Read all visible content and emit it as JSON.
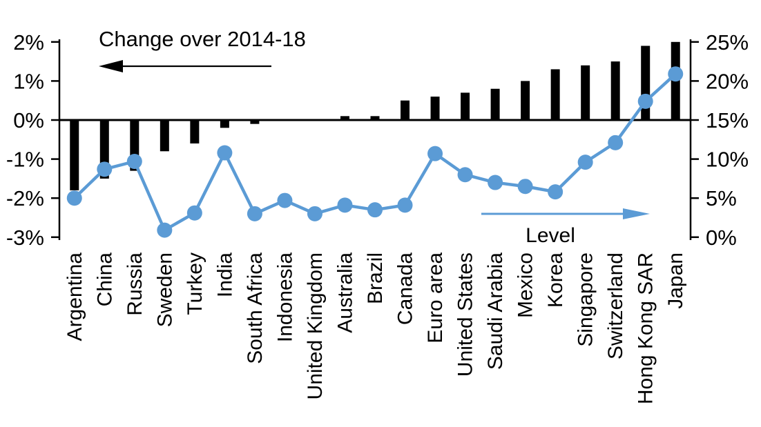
{
  "chart_data": {
    "type": "bar",
    "subtype": "bar-line-combo",
    "categories": [
      "Argentina",
      "China",
      "Russia",
      "Sweden",
      "Turkey",
      "India",
      "South Africa",
      "Indonesia",
      "United Kingdom",
      "Australia",
      "Brazil",
      "Canada",
      "Euro area",
      "United States",
      "Saudi Arabia",
      "Mexico",
      "Korea",
      "Singapore",
      "Switzerland",
      "Hong Kong SAR",
      "Japan"
    ],
    "series": [
      {
        "name": "Change over 2014-18",
        "type": "bar",
        "axis": "left",
        "color": "#000000",
        "values": [
          -1.8,
          -1.5,
          -1.3,
          -0.8,
          -0.6,
          -0.2,
          -0.1,
          0,
          0,
          0.1,
          0.1,
          0.5,
          0.6,
          0.7,
          0.8,
          1.0,
          1.3,
          1.4,
          1.5,
          1.9,
          2.0
        ]
      },
      {
        "name": "Level",
        "type": "line",
        "axis": "right",
        "color": "#5b9bd5",
        "values": [
          5.0,
          8.7,
          9.7,
          0.9,
          3.1,
          10.8,
          3.0,
          4.7,
          3.0,
          4.1,
          3.5,
          4.1,
          10.7,
          8.0,
          7.0,
          6.5,
          5.8,
          9.6,
          12.1,
          17.4,
          20.9
        ]
      }
    ],
    "left_axis": {
      "min": -3,
      "max": 2,
      "tick_values": [
        2,
        1,
        0,
        -1,
        -2,
        -3
      ],
      "tick_labels": [
        "2%",
        "1%",
        "0%",
        "-1%",
        "-2%",
        "-3%"
      ]
    },
    "right_axis": {
      "min": 0,
      "max": 25,
      "tick_values": [
        25,
        20,
        15,
        10,
        5,
        0
      ],
      "tick_labels": [
        "25%",
        "20%",
        "15%",
        "10%",
        "5%",
        "0%"
      ]
    },
    "annotations": {
      "bar_label": "Change over 2014-18",
      "bar_arrow_direction": "left",
      "line_label": "Level",
      "line_arrow_direction": "right"
    },
    "grid": false,
    "legend_position": "in-plot-annotations"
  },
  "colors": {
    "bar": "#000000",
    "line": "#5b9bd5",
    "axis": "#000000",
    "text": "#000000",
    "background": "#ffffff"
  }
}
